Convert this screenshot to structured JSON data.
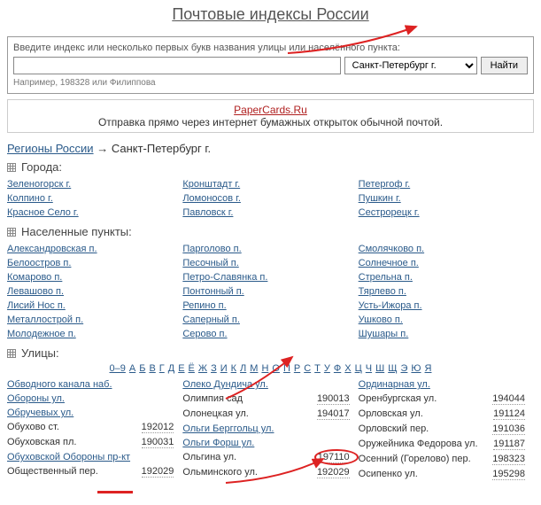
{
  "title": "Почтовые индексы России",
  "search": {
    "label": "Введите индекс или несколько первых букв названия улицы или населённого пункта:",
    "city": "Санкт-Петербург г.",
    "button": "Найти",
    "hint": "Например, 198328 или Филиппова"
  },
  "promo": {
    "link": "PaperCards.Ru",
    "text": "Отправка прямо через интернет бумажных открыток обычной почтой."
  },
  "breadcrumb": {
    "root": "Регионы России",
    "arrow": "→",
    "current": "Санкт-Петербург г."
  },
  "sections": {
    "cities_label": "Города:",
    "settlements_label": "Населенные пункты:",
    "streets_label": "Улицы:"
  },
  "cities": {
    "c1": [
      "Зеленогорск г.",
      "Колпино г.",
      "Красное Село г."
    ],
    "c2": [
      "Кронштадт г.",
      "Ломоносов г.",
      "Павловск г."
    ],
    "c3": [
      "Петергоф г.",
      "Пушкин г.",
      "Сестрорецк г."
    ]
  },
  "settlements": {
    "c1": [
      "Александровская п.",
      "Белоостров п.",
      "Комарово п.",
      "Левашово п.",
      "Лисий Нос п.",
      "Металлострой п.",
      "Молодежное п."
    ],
    "c2": [
      "Парголово п.",
      "Песочный п.",
      "Петро-Славянка п.",
      "Понтонный п.",
      "Репино п.",
      "Саперный п.",
      "Серово п."
    ],
    "c3": [
      "Смолячково п.",
      "Солнечное п.",
      "Стрельна п.",
      "Тярлево п.",
      "Усть-Ижора п.",
      "Ушково п.",
      "Шушары п."
    ]
  },
  "alpha": [
    "0–9",
    "А",
    "Б",
    "В",
    "Г",
    "Д",
    "Е",
    "Ё",
    "Ж",
    "З",
    "И",
    "К",
    "Л",
    "М",
    "Н",
    "О",
    "П",
    "Р",
    "С",
    "Т",
    "У",
    "Ф",
    "Х",
    "Ц",
    "Ч",
    "Ш",
    "Щ",
    "Э",
    "Ю",
    "Я"
  ],
  "streets": {
    "c1": [
      {
        "n": "Обводного канала наб.",
        "link": true
      },
      {
        "n": "Обороны ул.",
        "link": true
      },
      {
        "n": "Обручевых ул.",
        "link": true
      },
      {
        "n": "Обухово ст.",
        "c": "192012"
      },
      {
        "n": "Обуховская пл.",
        "c": "190031"
      },
      {
        "n": "Обуховской Обороны пр-кт",
        "link": true
      },
      {
        "n": "Общественный пер.",
        "c": "192029"
      }
    ],
    "c2": [
      {
        "n": "Олеко Дундича ул.",
        "link": true
      },
      {
        "n": "Олимпия сад",
        "c": "190013"
      },
      {
        "n": "Олонецкая ул.",
        "c": "194017"
      },
      {
        "n": "Ольги Берггольц ул.",
        "link": true
      },
      {
        "n": "Ольги Форш ул.",
        "link": true
      },
      {
        "n": "Ольгина ул.",
        "c": "197110"
      },
      {
        "n": "Ольминского ул.",
        "c": "192029"
      }
    ],
    "c3": [
      {
        "n": "Ординарная ул.",
        "link": true
      },
      {
        "n": "Оренбургская ул.",
        "c": "194044"
      },
      {
        "n": "Орловская ул.",
        "c": "191124"
      },
      {
        "n": "Орловский пер.",
        "c": "191036"
      },
      {
        "n": "Оружейника Федорова ул.",
        "c": "191187"
      },
      {
        "n": "Осенний (Горелово) пер.",
        "c": "198323"
      },
      {
        "n": "Осипенко ул.",
        "c": "195298"
      }
    ]
  }
}
